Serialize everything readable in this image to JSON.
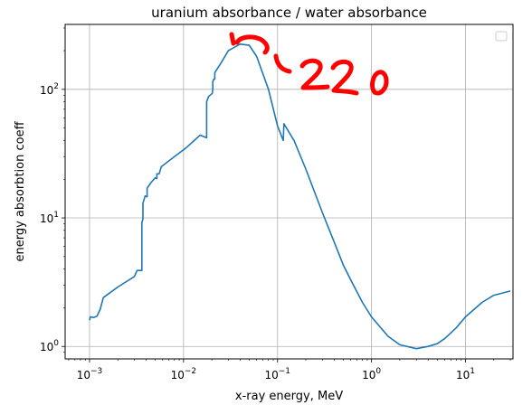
{
  "chart_data": {
    "type": "line",
    "title": "uranium absorbance / water absorbance",
    "xlabel": "x-ray energy, MeV",
    "ylabel": "energy absorbtion coeff",
    "x_scale": "log",
    "y_scale": "log",
    "xlim": [
      0.00055,
      32
    ],
    "ylim": [
      0.8,
      320
    ],
    "grid": true,
    "legend": "top-right",
    "x_ticks": [
      {
        "value": 0.001,
        "base": "10",
        "exp": "−3"
      },
      {
        "value": 0.01,
        "base": "10",
        "exp": "−2"
      },
      {
        "value": 0.1,
        "base": "10",
        "exp": "−1"
      },
      {
        "value": 1,
        "base": "10",
        "exp": "0"
      },
      {
        "value": 10,
        "base": "10",
        "exp": "1"
      }
    ],
    "y_ticks": [
      {
        "value": 1,
        "base": "10",
        "exp": "0"
      },
      {
        "value": 10,
        "base": "10",
        "exp": "1"
      },
      {
        "value": 100,
        "base": "10",
        "exp": "2"
      }
    ],
    "series": [
      {
        "color": "#1f77b4",
        "points": [
          [
            0.001,
            1.6
          ],
          [
            0.00102,
            1.7
          ],
          [
            0.0011,
            1.68
          ],
          [
            0.0012,
            1.72
          ],
          [
            0.0013,
            1.95
          ],
          [
            0.0014,
            2.4
          ],
          [
            0.002,
            2.9
          ],
          [
            0.003,
            3.5
          ],
          [
            0.0032,
            3.9
          ],
          [
            0.0034,
            3.9
          ],
          [
            0.0036,
            3.9
          ],
          [
            0.0036,
            9.2
          ],
          [
            0.0037,
            9.8
          ],
          [
            0.0037,
            13.0
          ],
          [
            0.0039,
            14.8
          ],
          [
            0.0041,
            14.6
          ],
          [
            0.0041,
            17.0
          ],
          [
            0.0045,
            18.8
          ],
          [
            0.005,
            20.5
          ],
          [
            0.0052,
            20.2
          ],
          [
            0.0052,
            22.0
          ],
          [
            0.0055,
            22.0
          ],
          [
            0.0058,
            25.0
          ],
          [
            0.008,
            30.0
          ],
          [
            0.0106,
            35.0
          ],
          [
            0.015,
            44.0
          ],
          [
            0.0176,
            42.0
          ],
          [
            0.0176,
            80.0
          ],
          [
            0.0185,
            88.0
          ],
          [
            0.0202,
            93.0
          ],
          [
            0.0205,
            100.0
          ],
          [
            0.0205,
            115.0
          ],
          [
            0.021,
            120.0
          ],
          [
            0.0215,
            120.0
          ],
          [
            0.0215,
            135.0
          ],
          [
            0.025,
            160.0
          ],
          [
            0.03,
            200.0
          ],
          [
            0.04,
            225.0
          ],
          [
            0.05,
            220.0
          ],
          [
            0.06,
            180.0
          ],
          [
            0.08,
            100.0
          ],
          [
            0.1,
            52.0
          ],
          [
            0.115,
            40.0
          ],
          [
            0.117,
            54.0
          ],
          [
            0.15,
            40.0
          ],
          [
            0.2,
            24.0
          ],
          [
            0.3,
            11.0
          ],
          [
            0.4,
            6.5
          ],
          [
            0.5,
            4.3
          ],
          [
            0.6,
            3.3
          ],
          [
            0.8,
            2.2
          ],
          [
            1.0,
            1.7
          ],
          [
            1.25,
            1.4
          ],
          [
            1.5,
            1.2
          ],
          [
            2.0,
            1.03
          ],
          [
            3.0,
            0.96
          ],
          [
            4.0,
            1.0
          ],
          [
            5.0,
            1.05
          ],
          [
            6.0,
            1.15
          ],
          [
            8.0,
            1.4
          ],
          [
            10.0,
            1.7
          ],
          [
            15.0,
            2.2
          ],
          [
            20.0,
            2.5
          ],
          [
            30.0,
            2.7
          ]
        ]
      }
    ],
    "annotation": {
      "text": "220",
      "color": "#ff0000"
    }
  }
}
